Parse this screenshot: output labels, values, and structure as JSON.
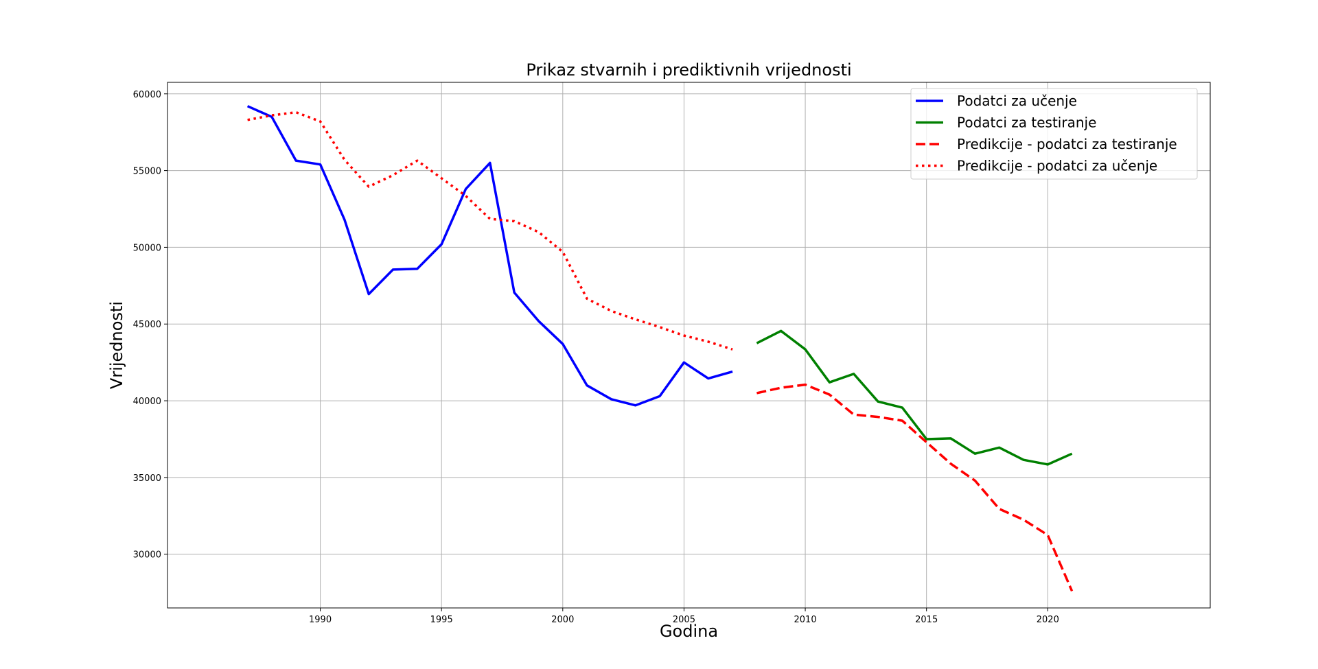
{
  "chart_data": {
    "type": "line",
    "title": "Prikaz stvarnih i prediktivnih vrijednosti",
    "xlabel": "Godina",
    "ylabel": "Vrijednosti",
    "xlim": [
      1983.7,
      2026.7
    ],
    "ylim": [
      26500,
      60750
    ],
    "x_ticks": [
      1990,
      1995,
      2000,
      2005,
      2010,
      2015,
      2020
    ],
    "y_ticks": [
      30000,
      35000,
      40000,
      45000,
      50000,
      55000,
      60000
    ],
    "grid": true,
    "legend_position": "upper right",
    "series": [
      {
        "name": "Podatci za učenje",
        "color": "#0000ff",
        "style": "solid",
        "x": [
          1987,
          1988,
          1989,
          1990,
          1991,
          1992,
          1993,
          1994,
          1995,
          1996,
          1997,
          1998,
          1999,
          2000,
          2001,
          2002,
          2003,
          2004,
          2005,
          2006,
          2007
        ],
        "y": [
          59200,
          58500,
          55650,
          55400,
          51800,
          46950,
          48550,
          48600,
          50200,
          53800,
          55500,
          47050,
          45200,
          43700,
          41000,
          40100,
          39700,
          40300,
          42500,
          41450,
          41900
        ]
      },
      {
        "name": "Podatci za testiranje",
        "color": "#008000",
        "style": "solid",
        "x": [
          2008,
          2009,
          2010,
          2011,
          2012,
          2013,
          2014,
          2015,
          2016,
          2017,
          2018,
          2019,
          2020,
          2021
        ],
        "y": [
          43750,
          44550,
          43350,
          41200,
          41750,
          39950,
          39550,
          37500,
          37550,
          36550,
          36950,
          36150,
          35850,
          36550
        ]
      },
      {
        "name": "Predikcije - podatci za testiranje",
        "color": "#ff0000",
        "style": "dashed",
        "x": [
          2008,
          2009,
          2010,
          2011,
          2012,
          2013,
          2014,
          2015,
          2016,
          2017,
          2018,
          2019,
          2020,
          2021
        ],
        "y": [
          40500,
          40850,
          41050,
          40400,
          39100,
          38950,
          38700,
          37300,
          35900,
          34800,
          32950,
          32250,
          31250,
          27600
        ]
      },
      {
        "name": "Predikcije - podatci za učenje",
        "color": "#ff0000",
        "style": "dotted",
        "x": [
          1987,
          1988,
          1989,
          1990,
          1991,
          1992,
          1993,
          1994,
          1995,
          1996,
          1997,
          1998,
          1999,
          2000,
          2001,
          2002,
          2003,
          2004,
          2005,
          2006,
          2007
        ],
        "y": [
          58300,
          58600,
          58800,
          58200,
          55700,
          53950,
          54700,
          55650,
          54500,
          53350,
          51850,
          51700,
          51000,
          49700,
          46650,
          45850,
          45300,
          44800,
          44250,
          43850,
          43350
        ]
      }
    ]
  }
}
